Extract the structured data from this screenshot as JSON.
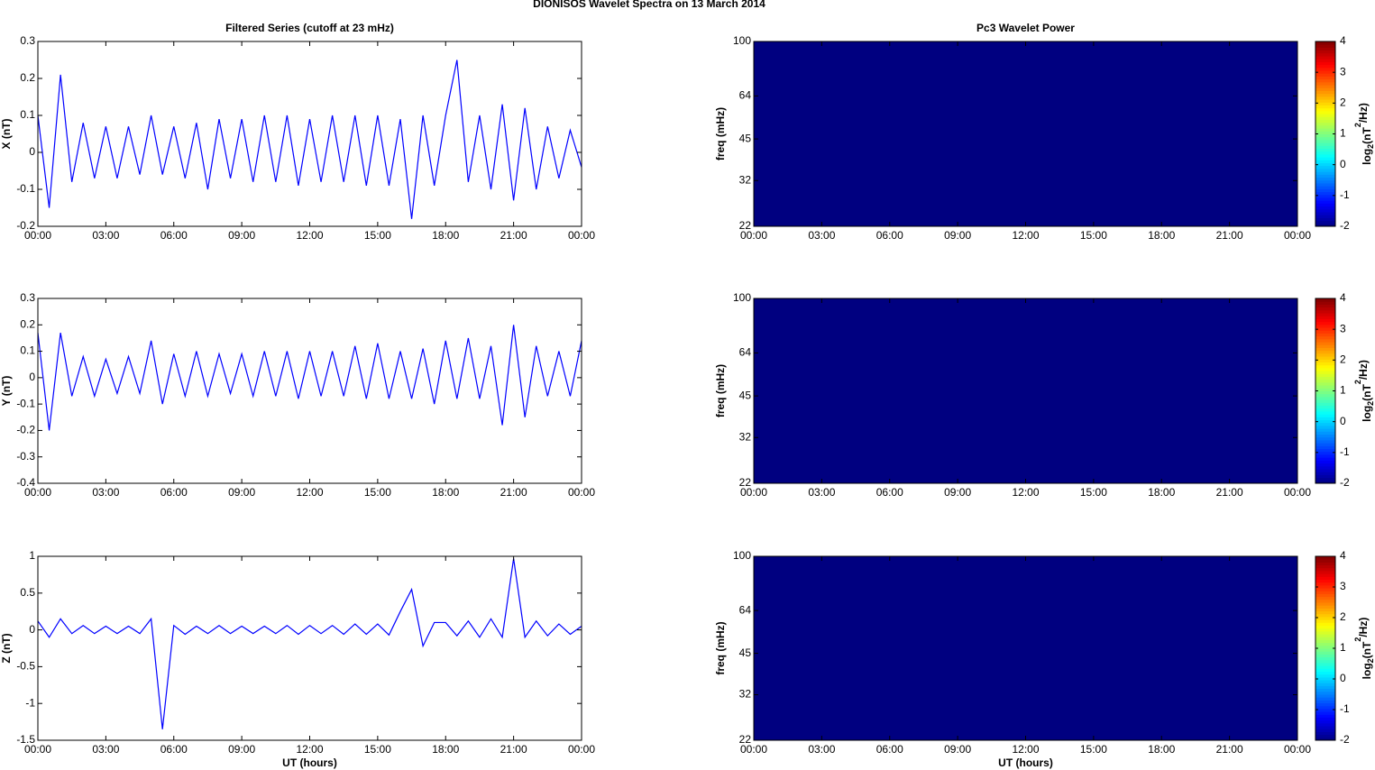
{
  "title": "DIONISOS Wavelet Spectra on 13 March     2014",
  "chart_data": [
    {
      "type": "line",
      "title": "Filtered Series (cutoff at 23 mHz)",
      "ylabel": "X (nT)",
      "xlim": [
        0,
        24
      ],
      "xticks": [
        {
          "value": 0,
          "label": "00:00"
        },
        {
          "value": 3,
          "label": "03:00"
        },
        {
          "value": 6,
          "label": "06:00"
        },
        {
          "value": 9,
          "label": "09:00"
        },
        {
          "value": 12,
          "label": "12:00"
        },
        {
          "value": 15,
          "label": "15:00"
        },
        {
          "value": 18,
          "label": "18:00"
        },
        {
          "value": 21,
          "label": "21:00"
        },
        {
          "value": 24,
          "label": "00:00"
        }
      ],
      "ylim": [
        -0.2,
        0.3
      ],
      "yticks": [
        -0.2,
        -0.1,
        0,
        0.1,
        0.2,
        0.3
      ],
      "x": [
        0,
        0.5,
        1,
        1.5,
        2,
        2.5,
        3,
        3.5,
        4,
        4.5,
        5,
        5.5,
        6,
        6.5,
        7,
        7.5,
        8,
        8.5,
        9,
        9.5,
        10,
        10.5,
        11,
        11.5,
        12,
        12.5,
        13,
        13.5,
        14,
        14.5,
        15,
        15.5,
        16,
        16.5,
        17,
        17.5,
        18,
        18.5,
        19,
        19.5,
        20,
        20.5,
        21,
        21.5,
        22,
        22.5,
        23,
        23.5,
        24
      ],
      "series": [
        {
          "color": "#0000ff",
          "values": [
            0.1,
            -0.15,
            0.21,
            -0.08,
            0.08,
            -0.07,
            0.07,
            -0.07,
            0.07,
            -0.06,
            0.1,
            -0.06,
            0.07,
            -0.07,
            0.08,
            -0.1,
            0.09,
            -0.07,
            0.09,
            -0.08,
            0.1,
            -0.08,
            0.1,
            -0.09,
            0.09,
            -0.08,
            0.1,
            -0.08,
            0.1,
            -0.09,
            0.1,
            -0.09,
            0.09,
            -0.18,
            0.1,
            -0.09,
            0.1,
            0.25,
            -0.08,
            0.1,
            -0.1,
            0.13,
            -0.13,
            0.12,
            -0.1,
            0.07,
            -0.07,
            0.06,
            -0.04
          ]
        }
      ]
    },
    {
      "type": "heatmap",
      "title": "Pc3 Wavelet Power",
      "ylabel": "freq (mHz)",
      "xlim": [
        0,
        24
      ],
      "xticks": [
        {
          "value": 0,
          "label": "00:00"
        },
        {
          "value": 3,
          "label": "03:00"
        },
        {
          "value": 6,
          "label": "06:00"
        },
        {
          "value": 9,
          "label": "09:00"
        },
        {
          "value": 12,
          "label": "12:00"
        },
        {
          "value": 15,
          "label": "15:00"
        },
        {
          "value": 18,
          "label": "18:00"
        },
        {
          "value": 21,
          "label": "21:00"
        },
        {
          "value": 24,
          "label": "00:00"
        }
      ],
      "ylim": [
        22,
        100
      ],
      "yscale": "log",
      "yticks": [
        22,
        32,
        45,
        64,
        100
      ],
      "values": [
        [
          -2
        ]
      ],
      "colormap": "jet",
      "clim": [
        -2,
        4
      ],
      "colorbar_ticks": [
        -2,
        -1,
        0,
        1,
        2,
        3,
        4
      ],
      "colorbar_label": [
        "log",
        "2",
        "(nT",
        "2",
        "/Hz)"
      ]
    },
    {
      "type": "line",
      "ylabel": "Y (nT)",
      "xlim": [
        0,
        24
      ],
      "xticks": [
        {
          "value": 0,
          "label": "00:00"
        },
        {
          "value": 3,
          "label": "03:00"
        },
        {
          "value": 6,
          "label": "06:00"
        },
        {
          "value": 9,
          "label": "09:00"
        },
        {
          "value": 12,
          "label": "12:00"
        },
        {
          "value": 15,
          "label": "15:00"
        },
        {
          "value": 18,
          "label": "18:00"
        },
        {
          "value": 21,
          "label": "21:00"
        },
        {
          "value": 24,
          "label": "00:00"
        }
      ],
      "ylim": [
        -0.4,
        0.3
      ],
      "yticks": [
        -0.4,
        -0.3,
        -0.2,
        -0.1,
        0,
        0.1,
        0.2,
        0.3
      ],
      "x": [
        0,
        0.5,
        1,
        1.5,
        2,
        2.5,
        3,
        3.5,
        4,
        4.5,
        5,
        5.5,
        6,
        6.5,
        7,
        7.5,
        8,
        8.5,
        9,
        9.5,
        10,
        10.5,
        11,
        11.5,
        12,
        12.5,
        13,
        13.5,
        14,
        14.5,
        15,
        15.5,
        16,
        16.5,
        17,
        17.5,
        18,
        18.5,
        19,
        19.5,
        20,
        20.5,
        21,
        21.5,
        22,
        22.5,
        23,
        23.5,
        24
      ],
      "series": [
        {
          "color": "#0000ff",
          "values": [
            0.17,
            -0.2,
            0.17,
            -0.07,
            0.08,
            -0.07,
            0.07,
            -0.06,
            0.08,
            -0.06,
            0.14,
            -0.1,
            0.09,
            -0.07,
            0.1,
            -0.07,
            0.09,
            -0.06,
            0.09,
            -0.07,
            0.1,
            -0.07,
            0.1,
            -0.08,
            0.1,
            -0.07,
            0.1,
            -0.07,
            0.12,
            -0.08,
            0.13,
            -0.08,
            0.1,
            -0.08,
            0.11,
            -0.1,
            0.14,
            -0.08,
            0.15,
            -0.08,
            0.12,
            -0.18,
            0.2,
            -0.15,
            0.12,
            -0.07,
            0.1,
            -0.07,
            0.14
          ]
        }
      ]
    },
    {
      "type": "heatmap",
      "ylabel": "freq (mHz)",
      "xlim": [
        0,
        24
      ],
      "xticks": [
        {
          "value": 0,
          "label": "00:00"
        },
        {
          "value": 3,
          "label": "03:00"
        },
        {
          "value": 6,
          "label": "06:00"
        },
        {
          "value": 9,
          "label": "09:00"
        },
        {
          "value": 12,
          "label": "12:00"
        },
        {
          "value": 15,
          "label": "15:00"
        },
        {
          "value": 18,
          "label": "18:00"
        },
        {
          "value": 21,
          "label": "21:00"
        },
        {
          "value": 24,
          "label": "00:00"
        }
      ],
      "ylim": [
        22,
        100
      ],
      "yscale": "log",
      "yticks": [
        22,
        32,
        45,
        64,
        100
      ],
      "values": [
        [
          -2
        ]
      ],
      "colormap": "jet",
      "clim": [
        -2,
        4
      ],
      "colorbar_ticks": [
        -2,
        -1,
        0,
        1,
        2,
        3,
        4
      ],
      "colorbar_label": [
        "log",
        "2",
        "(nT",
        "2",
        "/Hz)"
      ]
    },
    {
      "type": "line",
      "ylabel": "Z (nT)",
      "xlabel": "UT (hours)",
      "xlim": [
        0,
        24
      ],
      "xticks": [
        {
          "value": 0,
          "label": "00:00"
        },
        {
          "value": 3,
          "label": "03:00"
        },
        {
          "value": 6,
          "label": "06:00"
        },
        {
          "value": 9,
          "label": "09:00"
        },
        {
          "value": 12,
          "label": "12:00"
        },
        {
          "value": 15,
          "label": "15:00"
        },
        {
          "value": 18,
          "label": "18:00"
        },
        {
          "value": 21,
          "label": "21:00"
        },
        {
          "value": 24,
          "label": "00:00"
        }
      ],
      "ylim": [
        -1.5,
        1
      ],
      "yticks": [
        -1.5,
        -1,
        -0.5,
        0,
        0.5,
        1
      ],
      "x": [
        0,
        0.5,
        1,
        1.5,
        2,
        2.5,
        3,
        3.5,
        4,
        4.5,
        5,
        5.5,
        6,
        6.5,
        7,
        7.5,
        8,
        8.5,
        9,
        9.5,
        10,
        10.5,
        11,
        11.5,
        12,
        12.5,
        13,
        13.5,
        14,
        14.5,
        15,
        15.5,
        16,
        16.5,
        17,
        17.5,
        18,
        18.5,
        19,
        19.5,
        20,
        20.5,
        21,
        21.5,
        22,
        22.5,
        23,
        23.5,
        24
      ],
      "series": [
        {
          "color": "#0000ff",
          "values": [
            0.12,
            -0.1,
            0.15,
            -0.05,
            0.06,
            -0.05,
            0.05,
            -0.05,
            0.05,
            -0.05,
            0.15,
            -1.35,
            0.06,
            -0.06,
            0.05,
            -0.05,
            0.06,
            -0.05,
            0.05,
            -0.05,
            0.05,
            -0.05,
            0.06,
            -0.06,
            0.06,
            -0.05,
            0.06,
            -0.06,
            0.08,
            -0.06,
            0.08,
            -0.07,
            0.25,
            0.55,
            -0.22,
            0.1,
            0.1,
            -0.08,
            0.12,
            -0.1,
            0.15,
            -0.1,
            0.97,
            -0.1,
            0.12,
            -0.08,
            0.08,
            -0.06,
            0.05
          ]
        }
      ]
    },
    {
      "type": "heatmap",
      "ylabel": "freq (mHz)",
      "xlabel": "UT (hours)",
      "xlim": [
        0,
        24
      ],
      "xticks": [
        {
          "value": 0,
          "label": "00:00"
        },
        {
          "value": 3,
          "label": "03:00"
        },
        {
          "value": 6,
          "label": "06:00"
        },
        {
          "value": 9,
          "label": "09:00"
        },
        {
          "value": 12,
          "label": "12:00"
        },
        {
          "value": 15,
          "label": "15:00"
        },
        {
          "value": 18,
          "label": "18:00"
        },
        {
          "value": 21,
          "label": "21:00"
        },
        {
          "value": 24,
          "label": "00:00"
        }
      ],
      "ylim": [
        22,
        100
      ],
      "yscale": "log",
      "yticks": [
        22,
        32,
        45,
        64,
        100
      ],
      "values": [
        [
          -2
        ]
      ],
      "colormap": "jet",
      "clim": [
        -2,
        4
      ],
      "colorbar_ticks": [
        -2,
        -1,
        0,
        1,
        2,
        3,
        4
      ],
      "colorbar_label": [
        "log",
        "2",
        "(nT",
        "2",
        "/Hz)"
      ]
    }
  ]
}
